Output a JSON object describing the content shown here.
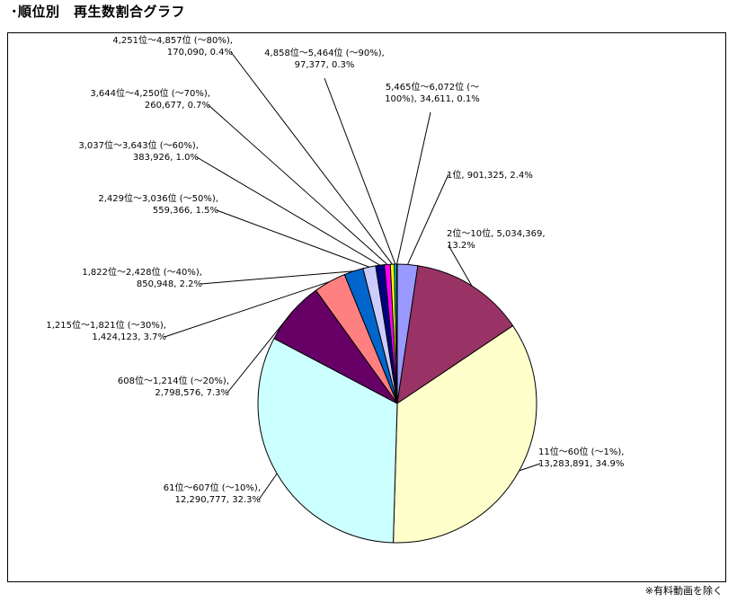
{
  "page": {
    "title": "･順位別　再生数割合グラフ",
    "footnote": "※有料動画を除く"
  },
  "chart_data": {
    "type": "pie",
    "title": "",
    "start_angle_deg": 0,
    "direction": "clockwise",
    "slices": [
      {
        "category": "1位",
        "value": 901325,
        "percent": 2.4,
        "color": "#9999ff",
        "label_lines": [
          "1位, 901,325, 2.4%"
        ]
      },
      {
        "category": "2位〜10位",
        "value": 5034369,
        "percent": 13.2,
        "color": "#993366",
        "label_lines": [
          "2位〜10位, 5,034,369,",
          "13.2%"
        ]
      },
      {
        "category": "11位〜60位 (〜1%)",
        "value": 13283891,
        "percent": 34.9,
        "color": "#ffffcc",
        "label_lines": [
          "11位〜60位 (〜1%),",
          "13,283,891, 34.9%"
        ]
      },
      {
        "category": "61位〜607位 (〜10%)",
        "value": 12290777,
        "percent": 32.3,
        "color": "#ccffff",
        "label_lines": [
          "61位〜607位 (〜10%),",
          "12,290,777, 32.3%"
        ]
      },
      {
        "category": "608位〜1,214位 (〜20%)",
        "value": 2798576,
        "percent": 7.3,
        "color": "#660066",
        "label_lines": [
          "608位〜1,214位 (〜20%),",
          "2,798,576, 7.3%"
        ]
      },
      {
        "category": "1,215位〜1,821位 (〜30%)",
        "value": 1424123,
        "percent": 3.7,
        "color": "#ff8080",
        "label_lines": [
          "1,215位〜1,821位 (〜30%),",
          "1,424,123, 3.7%"
        ]
      },
      {
        "category": "1,822位〜2,428位 (〜40%)",
        "value": 850948,
        "percent": 2.2,
        "color": "#0066cc",
        "label_lines": [
          "1,822位〜2,428位 (〜40%),",
          "850,948, 2.2%"
        ]
      },
      {
        "category": "2,429位〜3,036位 (〜50%)",
        "value": 559366,
        "percent": 1.5,
        "color": "#ccccff",
        "label_lines": [
          "2,429位〜3,036位 (〜50%),",
          "559,366, 1.5%"
        ]
      },
      {
        "category": "3,037位〜3,643位 (〜60%)",
        "value": 383926,
        "percent": 1.0,
        "color": "#000080",
        "label_lines": [
          "3,037位〜3,643位 (〜60%),",
          "383,926, 1.0%"
        ]
      },
      {
        "category": "3,644位〜4,250位 (〜70%)",
        "value": 260677,
        "percent": 0.7,
        "color": "#ff00ff",
        "label_lines": [
          "3,644位〜4,250位 (〜70%),",
          "260,677, 0.7%"
        ]
      },
      {
        "category": "4,251位〜4,857位 (〜80%)",
        "value": 170090,
        "percent": 0.4,
        "color": "#ffff00",
        "label_lines": [
          "4,251位〜4,857位 (〜80%),",
          "170,090, 0.4%"
        ]
      },
      {
        "category": "4,858位〜5,464位 (〜90%)",
        "value": 97377,
        "percent": 0.3,
        "color": "#00ffff",
        "label_lines": [
          "4,858位〜5,464位 (〜90%),",
          "97,377, 0.3%"
        ]
      },
      {
        "category": "5,465位〜6,072位 (〜100%)",
        "value": 34611,
        "percent": 0.1,
        "color": "#800080",
        "label_lines": [
          "5,465位〜6,072位 (〜",
          "100%), 34,611, 0.1%"
        ]
      }
    ]
  }
}
